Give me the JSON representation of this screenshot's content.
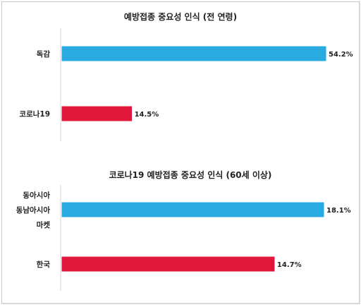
{
  "chart_data": [
    {
      "type": "bar",
      "orientation": "horizontal",
      "title": "예방접종 중요성 인식 (전 연령)",
      "categories": [
        "독감",
        "코로나19"
      ],
      "values": [
        54.2,
        14.5
      ],
      "value_labels": [
        "54.2%",
        "14.5%"
      ],
      "colors": [
        "#29abe2",
        "#e0173a"
      ],
      "xlim": [
        0,
        54.2
      ],
      "grid": false
    },
    {
      "type": "bar",
      "orientation": "horizontal",
      "title": "코로나19 예방접종 중요성 인식 (60세 이상)",
      "categories": [
        [
          "동아시아",
          "동남아시아",
          "마켓"
        ],
        [
          "한국"
        ]
      ],
      "values": [
        18.1,
        14.7
      ],
      "value_labels": [
        "18.1%",
        "14.7%"
      ],
      "colors": [
        "#29abe2",
        "#e0173a"
      ],
      "xlim": [
        0,
        18.1
      ],
      "grid": false
    }
  ]
}
